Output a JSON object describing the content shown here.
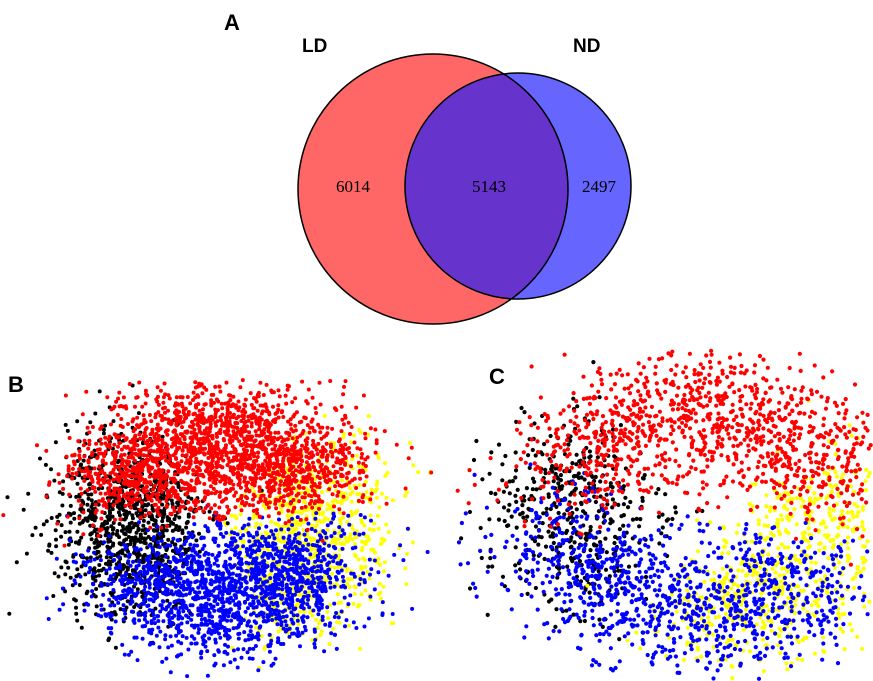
{
  "panels": {
    "a": {
      "letter": "A"
    },
    "b": {
      "letter": "B"
    },
    "c": {
      "letter": "C"
    }
  },
  "venn": {
    "left": {
      "label": "LD",
      "only": "6014",
      "color": "#ff6666"
    },
    "right": {
      "label": "ND",
      "only": "2497",
      "color": "#6666ff"
    },
    "overlap": {
      "count": "5143",
      "color": "#6633cc"
    },
    "outline": "#000000"
  },
  "scatter": {
    "colors": {
      "red": "#ff0000",
      "blue": "#0000ff",
      "yellow": "#ffff00",
      "black": "#000000"
    }
  }
}
